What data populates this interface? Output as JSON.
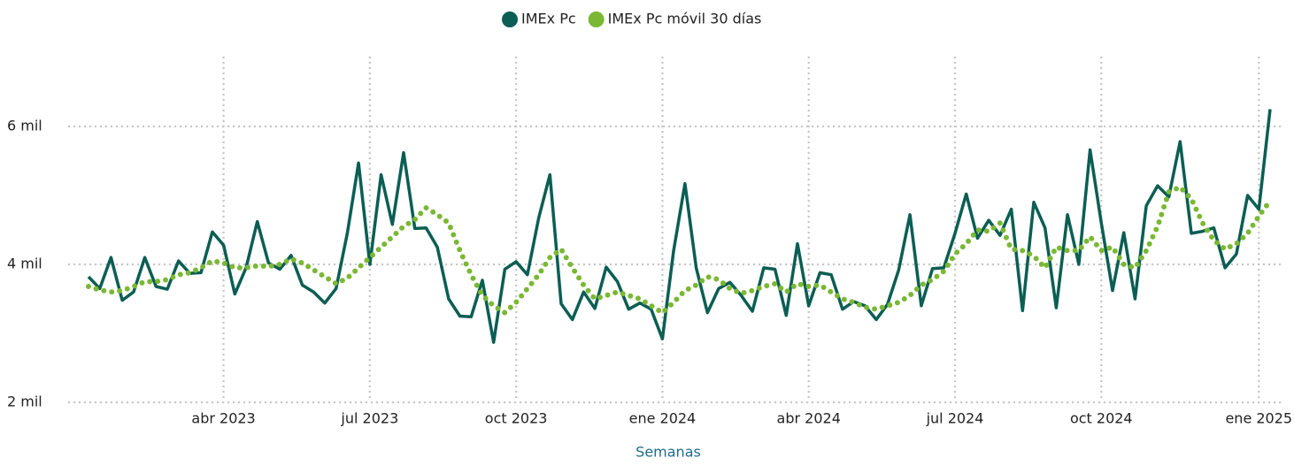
{
  "chart_data": {
    "type": "line",
    "x_label": "Semanas",
    "categories": [
      null,
      null,
      null,
      null,
      null,
      null,
      null,
      null,
      null,
      null,
      null,
      null,
      "abr 2023",
      null,
      null,
      null,
      null,
      null,
      null,
      null,
      null,
      null,
      null,
      null,
      null,
      "jul 2023",
      null,
      null,
      null,
      null,
      null,
      null,
      null,
      null,
      null,
      null,
      null,
      null,
      "oct 2023",
      null,
      null,
      null,
      null,
      null,
      null,
      null,
      null,
      null,
      null,
      null,
      null,
      "ene 2024",
      null,
      null,
      null,
      null,
      null,
      null,
      null,
      null,
      null,
      null,
      null,
      null,
      "abr 2024",
      null,
      null,
      null,
      null,
      null,
      null,
      null,
      null,
      null,
      null,
      null,
      null,
      "jul 2024",
      null,
      null,
      null,
      null,
      null,
      null,
      null,
      null,
      null,
      null,
      null,
      null,
      "oct 2024",
      null,
      null,
      null,
      null,
      null,
      null,
      null,
      null,
      null,
      null,
      null,
      null,
      null,
      "ene 2025",
      null
    ],
    "series": [
      {
        "name": "IMEx Pc",
        "color": "#0b5e53",
        "style": "solid",
        "values": [
          3820,
          3650,
          4100,
          3480,
          3600,
          4100,
          3680,
          3640,
          4050,
          3870,
          3880,
          4470,
          4280,
          3570,
          3950,
          4620,
          4020,
          3930,
          4130,
          3700,
          3600,
          3440,
          3650,
          4450,
          5470,
          4000,
          5300,
          4580,
          5620,
          4520,
          4530,
          4250,
          3500,
          3250,
          3240,
          3770,
          2870,
          3930,
          4040,
          3850,
          4670,
          5300,
          3430,
          3200,
          3600,
          3360,
          3960,
          3750,
          3350,
          3440,
          3350,
          2920,
          4200,
          5170,
          3950,
          3300,
          3650,
          3740,
          3550,
          3320,
          3950,
          3930,
          3260,
          4300,
          3400,
          3880,
          3850,
          3350,
          3460,
          3400,
          3200,
          3420,
          3920,
          4720,
          3400,
          3940,
          3950,
          4450,
          5020,
          4380,
          4640,
          4420,
          4800,
          3330,
          4900,
          4530,
          3370,
          4720,
          4000,
          5660,
          4600,
          3620,
          4460,
          3500,
          4850,
          5140,
          4980,
          5780,
          4450,
          4480,
          4530,
          3950,
          4150,
          5000,
          4800,
          6250
        ]
      },
      {
        "name": "IMEx Pc móvil 30 días",
        "color": "#7ab834",
        "style": "dotted",
        "values": [
          3680,
          3630,
          3600,
          3620,
          3680,
          3750,
          3750,
          3780,
          3850,
          3880,
          3950,
          4050,
          4020,
          3950,
          3950,
          3980,
          3970,
          4000,
          4080,
          4020,
          3920,
          3820,
          3720,
          3800,
          3950,
          4100,
          4250,
          4400,
          4550,
          4650,
          4820,
          4720,
          4600,
          4200,
          3850,
          3550,
          3400,
          3300,
          3450,
          3650,
          3850,
          4100,
          4220,
          3950,
          3700,
          3500,
          3550,
          3600,
          3550,
          3500,
          3400,
          3300,
          3450,
          3620,
          3700,
          3820,
          3780,
          3650,
          3580,
          3620,
          3680,
          3720,
          3600,
          3720,
          3680,
          3700,
          3600,
          3500,
          3450,
          3380,
          3350,
          3400,
          3450,
          3550,
          3700,
          3780,
          3900,
          4150,
          4300,
          4500,
          4480,
          4600,
          4220,
          4200,
          4120,
          3950,
          4250,
          4200,
          4200,
          4400,
          4200,
          4250,
          4000,
          3950,
          4200,
          4550,
          5050,
          5120,
          4950,
          4600,
          4350,
          4220,
          4300,
          4450,
          4700,
          4920
        ]
      }
    ],
    "ylim": [
      2000,
      7000
    ],
    "yticks": [
      {
        "value": 2000,
        "label": "2 mil"
      },
      {
        "value": 4000,
        "label": "4 mil"
      },
      {
        "value": 6000,
        "label": "6 mil"
      }
    ],
    "grid": true,
    "legend": "top"
  }
}
